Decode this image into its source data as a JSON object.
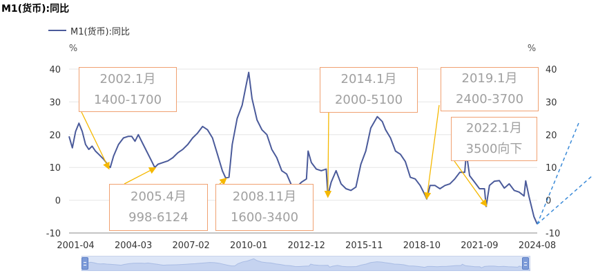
{
  "title": "M1(货币):同比",
  "legend": {
    "series_name": "M1(货币):同比",
    "color": "#4a5a9a"
  },
  "colors": {
    "line": "#4a5a9a",
    "arrow": "#f5b800",
    "trend": "#3a8ad8",
    "annotation_border": "#f0a070",
    "annotation_text": "#a0a0a0",
    "grid": "#e6e6e6"
  },
  "chart_data": {
    "type": "line",
    "title": "M1(货币):同比",
    "xlabel": "",
    "ylabel": "%",
    "ylabel_right": "%",
    "ylim": [
      -10,
      40
    ],
    "yticks": [
      -10,
      0,
      10,
      20,
      30,
      40
    ],
    "xticks": [
      "2001-04",
      "2004-03",
      "2007-02",
      "2010-01",
      "2012-12",
      "2015-11",
      "2018-10",
      "2021-09",
      "2024-08"
    ],
    "grid": "horizontal",
    "legend_position": "top-left",
    "series": [
      {
        "name": "M1(货币):同比",
        "x": [
          "2000-12",
          "2001-02",
          "2001-04",
          "2001-06",
          "2001-08",
          "2001-10",
          "2001-12",
          "2002-02",
          "2002-04",
          "2002-06",
          "2002-09",
          "2002-12",
          "2003-01",
          "2003-03",
          "2003-06",
          "2003-09",
          "2003-12",
          "2004-02",
          "2004-04",
          "2004-06",
          "2004-09",
          "2004-12",
          "2005-02",
          "2005-04",
          "2005-06",
          "2005-09",
          "2005-12",
          "2006-03",
          "2006-06",
          "2006-09",
          "2006-12",
          "2007-03",
          "2007-06",
          "2007-09",
          "2007-12",
          "2008-03",
          "2008-06",
          "2008-09",
          "2008-11",
          "2009-01",
          "2009-03",
          "2009-06",
          "2009-09",
          "2009-11",
          "2010-01",
          "2010-03",
          "2010-06",
          "2010-09",
          "2010-12",
          "2011-03",
          "2011-06",
          "2011-09",
          "2011-12",
          "2012-03",
          "2012-06",
          "2012-09",
          "2012-12",
          "2013-01",
          "2013-03",
          "2013-06",
          "2013-09",
          "2013-12",
          "2014-01",
          "2014-03",
          "2014-06",
          "2014-09",
          "2014-12",
          "2015-03",
          "2015-06",
          "2015-09",
          "2015-12",
          "2016-03",
          "2016-07",
          "2016-10",
          "2016-12",
          "2017-03",
          "2017-06",
          "2017-09",
          "2017-12",
          "2018-03",
          "2018-06",
          "2018-09",
          "2018-12",
          "2019-01",
          "2019-03",
          "2019-06",
          "2019-09",
          "2019-12",
          "2020-03",
          "2020-06",
          "2020-09",
          "2020-12",
          "2021-01",
          "2021-03",
          "2021-06",
          "2021-09",
          "2021-12",
          "2022-01",
          "2022-03",
          "2022-06",
          "2022-09",
          "2022-12",
          "2023-03",
          "2023-06",
          "2023-09",
          "2023-12",
          "2024-01",
          "2024-03",
          "2024-06",
          "2024-08"
        ],
        "values": [
          19.5,
          16.0,
          21.0,
          23.5,
          21.0,
          17.0,
          15.5,
          16.5,
          15.0,
          14.0,
          12.5,
          10.5,
          10.0,
          13.5,
          17.0,
          19.0,
          19.5,
          19.5,
          18.0,
          20.0,
          17.0,
          14.0,
          12.0,
          10.0,
          11.0,
          11.5,
          12.0,
          13.0,
          14.5,
          15.5,
          17.0,
          19.0,
          20.5,
          22.5,
          21.5,
          19.0,
          14.0,
          9.0,
          6.8,
          7.0,
          17.0,
          25.0,
          29.0,
          34.0,
          39.0,
          31.0,
          24.5,
          21.5,
          20.0,
          15.5,
          13.0,
          9.0,
          8.0,
          4.5,
          4.0,
          5.5,
          6.5,
          15.0,
          11.5,
          9.5,
          9.0,
          9.5,
          1.5,
          5.5,
          9.0,
          5.0,
          3.5,
          3.0,
          4.0,
          11.0,
          15.0,
          22.0,
          25.5,
          24.0,
          21.5,
          19.0,
          15.0,
          14.0,
          11.8,
          7.0,
          6.5,
          4.5,
          1.5,
          0.4,
          4.5,
          4.5,
          3.5,
          4.5,
          5.0,
          6.5,
          8.5,
          8.5,
          14.5,
          7.5,
          5.5,
          3.5,
          3.5,
          -1.9,
          4.5,
          5.8,
          6.0,
          3.7,
          5.0,
          3.0,
          2.5,
          1.3,
          5.9,
          1.1,
          -5.0,
          -7.3
        ]
      }
    ],
    "annotations": [
      {
        "date": "2002.1月",
        "range": "1400-1700"
      },
      {
        "date": "2005.4月",
        "range": "998-6124"
      },
      {
        "date": "2008.11月",
        "range": "1600-3400"
      },
      {
        "date": "2014.1月",
        "range": "2000-5100"
      },
      {
        "date": "2019.1月",
        "range": "2400-3700"
      },
      {
        "date": "2022.1月",
        "range": "3500向下"
      }
    ]
  }
}
